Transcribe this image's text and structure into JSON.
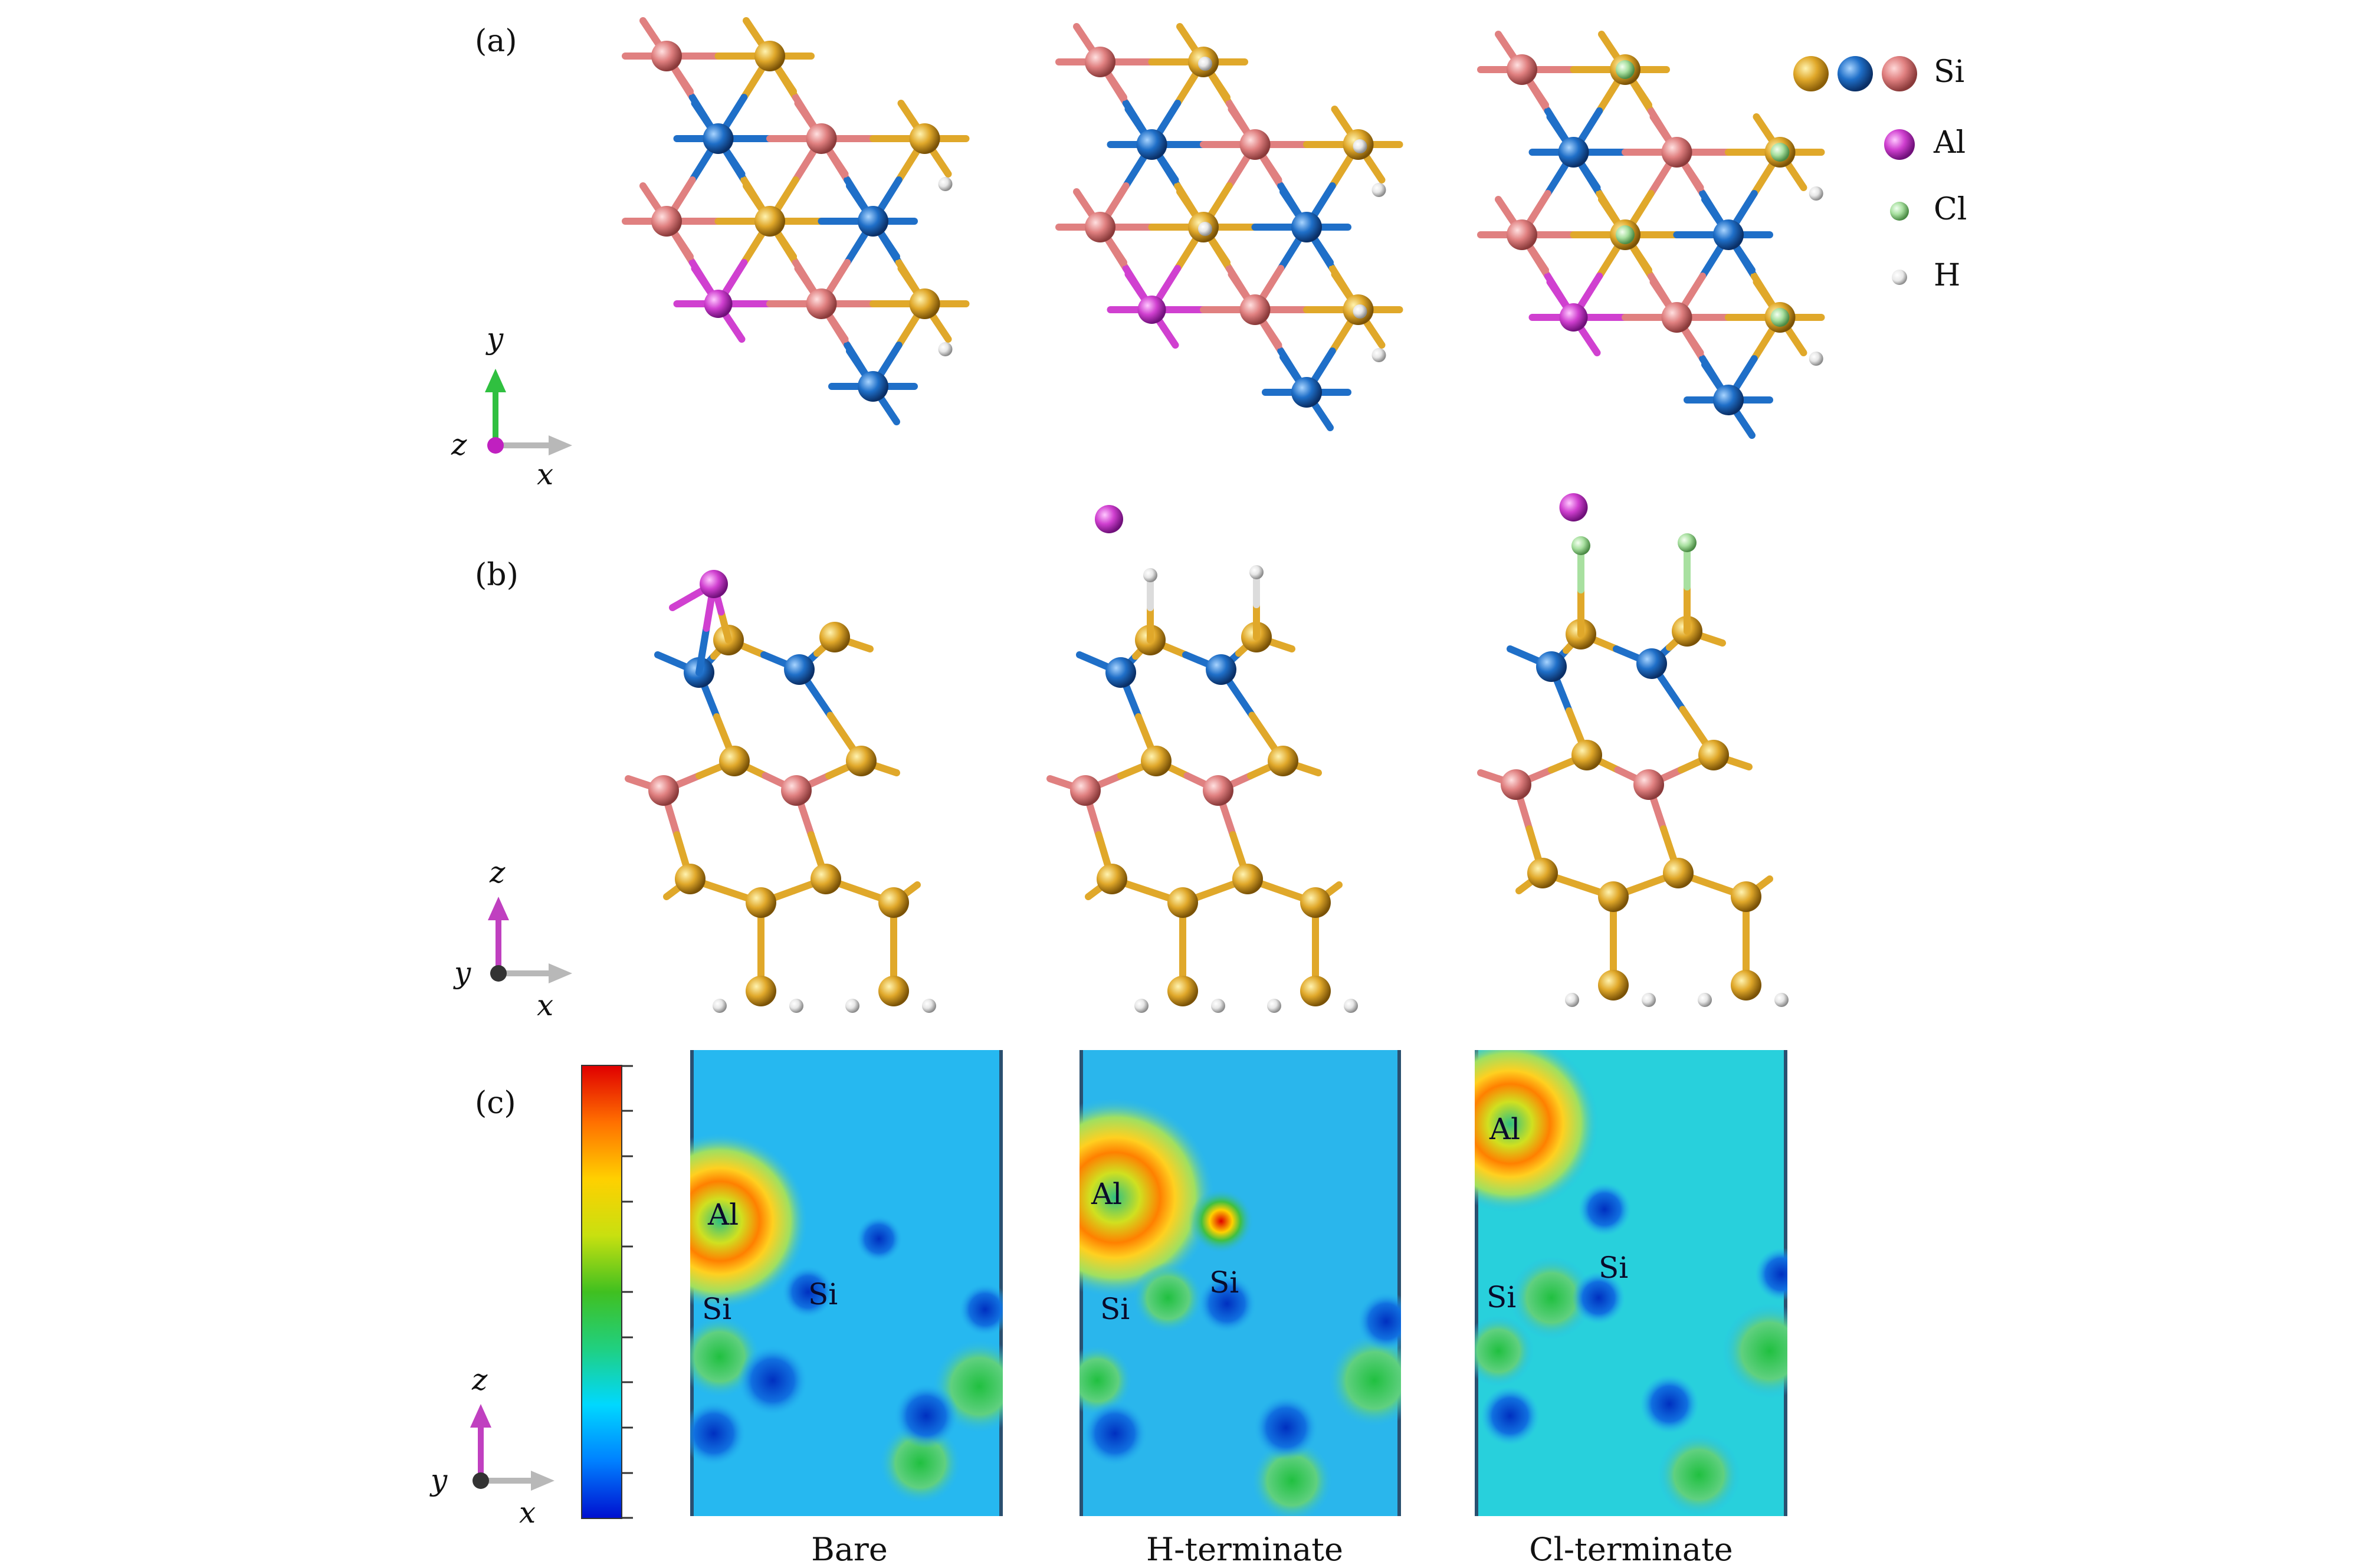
{
  "panels": {
    "a": "(a)",
    "b": "(b)",
    "c": "(c)"
  },
  "legend": {
    "si": "Si",
    "al": "Al",
    "cl": "Cl",
    "h": "H"
  },
  "axes": {
    "a": {
      "up": "y",
      "right": "x",
      "out": "z"
    },
    "b": {
      "up": "z",
      "right": "x",
      "out": "y"
    },
    "c": {
      "up": "z",
      "right": "x",
      "out": "y"
    }
  },
  "captions": [
    "Bare",
    "H-terminate",
    "Cl-terminate"
  ],
  "maps": [
    {
      "labels": [
        "Al",
        "Si",
        "Si"
      ]
    },
    {
      "labels": [
        "Al",
        "Si",
        "Si"
      ]
    },
    {
      "labels": [
        "Al",
        "Si",
        "Si"
      ]
    }
  ],
  "colors": {
    "si_gold": "#e0a82a",
    "si_blue": "#1f6fc8",
    "si_pink": "#e08080",
    "al": "#d040d0",
    "cl": "#a8e0a0",
    "h": "#f0f0f0",
    "map_bg": "#26b8f0"
  },
  "colorbar": {
    "stops": [
      "#0010d0",
      "#0080ff",
      "#00d8ff",
      "#20d080",
      "#40c020",
      "#c8e010",
      "#ffd000",
      "#ff7000",
      "#e00000"
    ]
  }
}
